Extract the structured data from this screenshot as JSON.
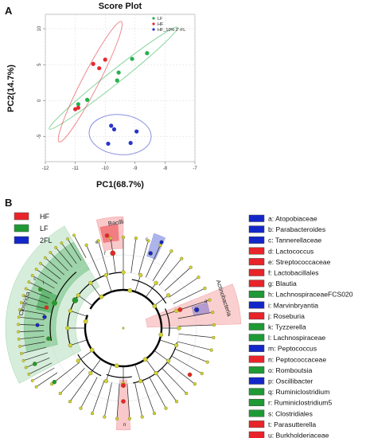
{
  "panel_a": {
    "letter": "A",
    "chart_data": {
      "type": "scatter",
      "title": "Score Plot",
      "xlabel": "PC1(68.7%)",
      "ylabel": "PC2(14.7%)",
      "xlim": [
        -12,
        -7
      ],
      "ylim": [
        -8.5,
        12
      ],
      "xticks": [
        -12,
        -11,
        -10,
        -9,
        -8,
        -7
      ],
      "yticks": [
        -5,
        0,
        5,
        10
      ],
      "grid": true,
      "legend_position": "top-right",
      "series": [
        {
          "name": "LF",
          "color": "#22b24c",
          "points": [
            [
              -10.9,
              -0.5
            ],
            [
              -10.6,
              0.1
            ],
            [
              -9.6,
              2.8
            ],
            [
              -9.55,
              3.9
            ],
            [
              -9.1,
              5.8
            ],
            [
              -8.6,
              6.6
            ]
          ]
        },
        {
          "name": "HF",
          "color": "#e3292e",
          "points": [
            [
              -11.0,
              -1.2
            ],
            [
              -10.9,
              -1.0
            ],
            [
              -10.4,
              5.1
            ],
            [
              -10.2,
              4.5
            ],
            [
              -10.0,
              5.7
            ]
          ]
        },
        {
          "name": "HF_10% 2'-FL",
          "color": "#2a34c8",
          "points": [
            [
              -9.8,
              -3.5
            ],
            [
              -9.7,
              -4.0
            ],
            [
              -9.9,
              -6.0
            ],
            [
              -9.15,
              -5.9
            ],
            [
              -8.95,
              -4.3
            ]
          ]
        }
      ]
    }
  },
  "panel_b": {
    "letter": "B",
    "group_legend": [
      {
        "label": "HF",
        "color": "#e8242a"
      },
      {
        "label": "LF",
        "color": "#1e9a35"
      },
      {
        "label": "2FL",
        "color": "#1327c9"
      }
    ],
    "sector_labels": [
      {
        "text": "Clostridia"
      },
      {
        "text": "Bacilli"
      },
      {
        "text": "Actinobacteria"
      }
    ],
    "node_letters": [
      "s",
      "l",
      "e",
      "f",
      "c",
      "a",
      "n"
    ],
    "clades": [
      {
        "text": "a: Atopobiaceae",
        "color": "#1327c9"
      },
      {
        "text": "b: Parabacteroides",
        "color": "#1327c9"
      },
      {
        "text": "c: Tannerellaceae",
        "color": "#1327c9"
      },
      {
        "text": "d: Lactococcus",
        "color": "#e8242a"
      },
      {
        "text": "e: Streptococcaceae",
        "color": "#e8242a"
      },
      {
        "text": "f: Lactobacillales",
        "color": "#e8242a"
      },
      {
        "text": "g: Blautia",
        "color": "#e8242a"
      },
      {
        "text": "h: LachnospiraceaeFCS020",
        "color": "#1e9a35"
      },
      {
        "text": "i: Marvinbryantia",
        "color": "#1327c9"
      },
      {
        "text": "j: Roseburia",
        "color": "#e8242a"
      },
      {
        "text": "k: Tyzzerella",
        "color": "#1e9a35"
      },
      {
        "text": "l: Lachnospiraceae",
        "color": "#1e9a35"
      },
      {
        "text": "m: Peptococcus",
        "color": "#1327c9"
      },
      {
        "text": "n: Peptococcaceae",
        "color": "#e8242a"
      },
      {
        "text": "o: Romboutsia",
        "color": "#1e9a35"
      },
      {
        "text": "p: Oscillibacter",
        "color": "#1327c9"
      },
      {
        "text": "q: Ruminiclostridium",
        "color": "#1e9a35"
      },
      {
        "text": "r: Ruminiclostridium5",
        "color": "#1e9a35"
      },
      {
        "text": "s: Clostridiales",
        "color": "#1e9a35"
      },
      {
        "text": "t: Parasutterella",
        "color": "#e8242a"
      },
      {
        "text": "u: Burkholderiaceae",
        "color": "#e8242a"
      }
    ]
  }
}
